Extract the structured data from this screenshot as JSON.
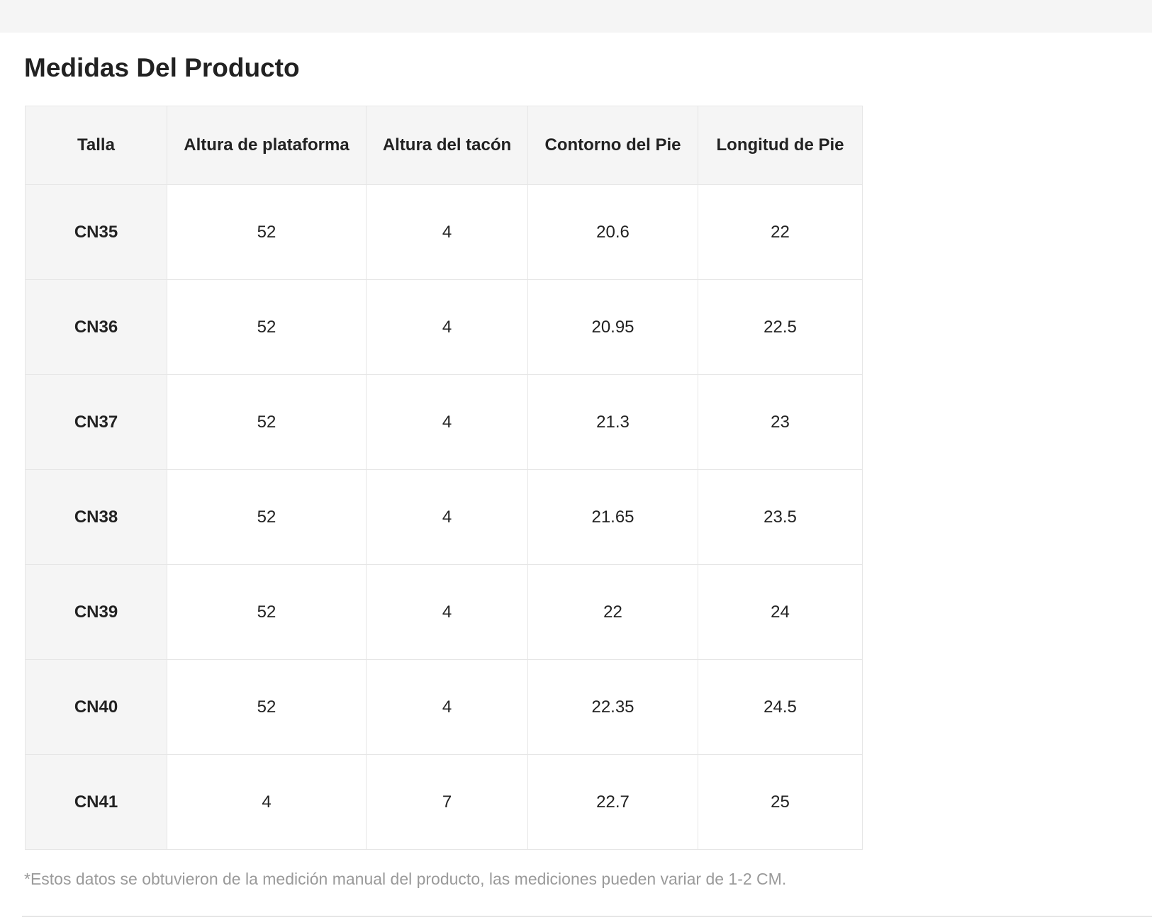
{
  "page": {
    "title": "Medidas Del Producto",
    "footnote": "*Estos datos se obtuvieron de la medición manual del producto, las mediciones pueden variar de 1-2 CM."
  },
  "table": {
    "headers": [
      "Talla",
      "Altura de plataforma",
      "Altura del tacón",
      "Contorno del Pie",
      "Longitud de Pie"
    ],
    "rows": [
      [
        "CN35",
        "52",
        "4",
        "20.6",
        "22"
      ],
      [
        "CN36",
        "52",
        "4",
        "20.95",
        "22.5"
      ],
      [
        "CN37",
        "52",
        "4",
        "21.3",
        "23"
      ],
      [
        "CN38",
        "52",
        "4",
        "21.65",
        "23.5"
      ],
      [
        "CN39",
        "52",
        "4",
        "22",
        "24"
      ],
      [
        "CN40",
        "52",
        "4",
        "22.35",
        "24.5"
      ],
      [
        "CN41",
        "4",
        "7",
        "22.7",
        "25"
      ]
    ]
  },
  "colors": {
    "header_bg": "#f5f5f5",
    "border": "#e6e6e6",
    "text": "#222222",
    "footnote_text": "#9a9a9a"
  }
}
